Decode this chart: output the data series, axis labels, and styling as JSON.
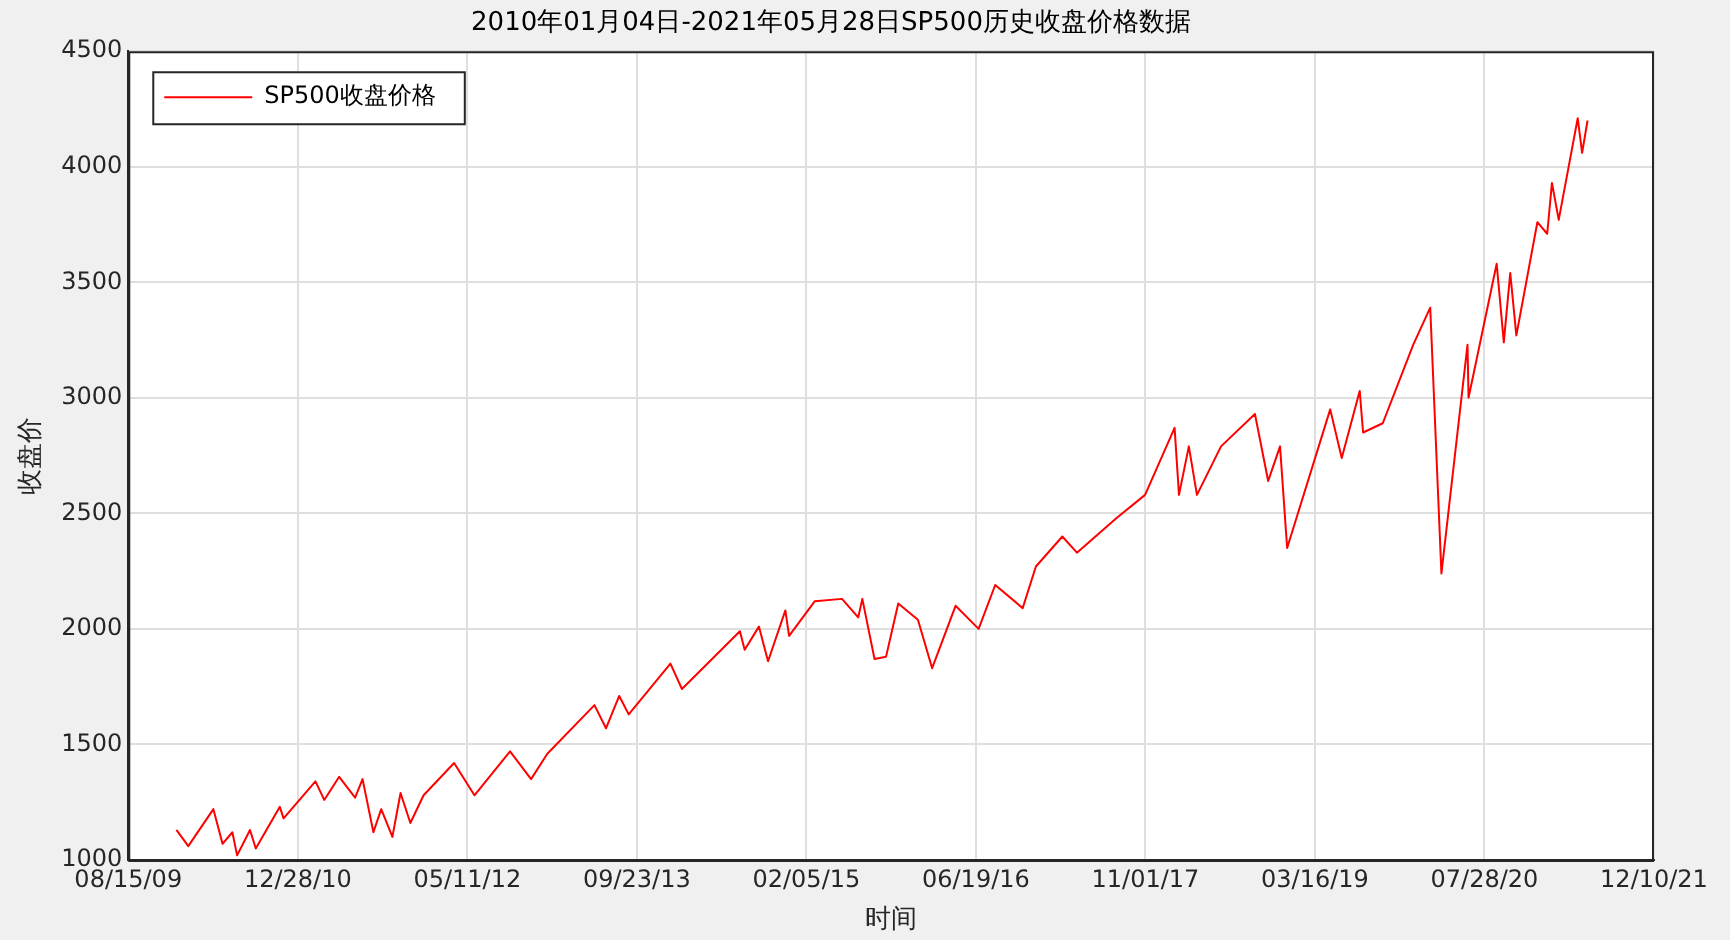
{
  "chart_data": {
    "type": "line",
    "title": "2010年01月04日-2021年05月28日SP500历史收盘价格数据",
    "xlabel": "时间",
    "ylabel": "收盘价",
    "x": [
      "2010-01-04",
      "2010-02-08",
      "2010-04-23",
      "2010-05-20",
      "2010-06-18",
      "2010-07-02",
      "2010-08-09",
      "2010-08-26",
      "2010-11-05",
      "2010-11-16",
      "2011-02-18",
      "2011-03-16",
      "2011-04-29",
      "2011-06-15",
      "2011-07-07",
      "2011-08-08",
      "2011-08-31",
      "2011-10-03",
      "2011-10-27",
      "2011-11-25",
      "2012-01-03",
      "2012-04-02",
      "2012-06-01",
      "2012-09-14",
      "2012-11-15",
      "2013-01-02",
      "2013-05-21",
      "2013-06-24",
      "2013-08-02",
      "2013-08-30",
      "2013-12-31",
      "2014-02-03",
      "2014-07-24",
      "2014-08-07",
      "2014-09-18",
      "2014-10-15",
      "2014-12-05",
      "2014-12-16",
      "2015-03-02",
      "2015-05-21",
      "2015-07-08",
      "2015-07-20",
      "2015-08-25",
      "2015-09-28",
      "2015-11-03",
      "2015-12-31",
      "2016-02-11",
      "2016-04-20",
      "2016-06-27",
      "2016-08-15",
      "2016-11-04",
      "2016-12-13",
      "2017-03-01",
      "2017-04-13",
      "2017-08-08",
      "2017-10-31",
      "2018-01-26",
      "2018-02-08",
      "2018-03-09",
      "2018-04-02",
      "2018-06-12",
      "2018-09-20",
      "2018-10-29",
      "2018-12-03",
      "2018-12-24",
      "2019-04-30",
      "2019-06-03",
      "2019-07-26",
      "2019-08-05",
      "2019-10-02",
      "2019-12-31",
      "2020-02-19",
      "2020-03-23",
      "2020-06-08",
      "2020-06-11",
      "2020-09-02",
      "2020-09-23",
      "2020-10-12",
      "2020-10-30",
      "2020-12-31",
      "2021-01-29",
      "2021-02-12",
      "2021-03-04",
      "2021-04-29",
      "2021-05-12",
      "2021-05-28"
    ],
    "series": [
      {
        "name": "SP500收盘价格",
        "color": "#ff0000",
        "values": [
          1130,
          1060,
          1220,
          1070,
          1120,
          1020,
          1130,
          1050,
          1230,
          1180,
          1340,
          1260,
          1360,
          1270,
          1350,
          1120,
          1220,
          1100,
          1290,
          1160,
          1280,
          1420,
          1280,
          1470,
          1350,
          1460,
          1670,
          1570,
          1710,
          1630,
          1850,
          1740,
          1990,
          1910,
          2010,
          1860,
          2080,
          1970,
          2120,
          2130,
          2050,
          2130,
          1870,
          1880,
          2110,
          2040,
          1830,
          2100,
          2000,
          2190,
          2090,
          2270,
          2400,
          2330,
          2480,
          2580,
          2870,
          2580,
          2790,
          2580,
          2790,
          2930,
          2640,
          2790,
          2350,
          2950,
          2740,
          3030,
          2850,
          2890,
          3230,
          3390,
          2240,
          3230,
          3000,
          3580,
          3240,
          3540,
          3270,
          3760,
          3710,
          3930,
          3770,
          4210,
          4060,
          4200
        ]
      }
    ],
    "xlim": [
      "2009-08-15",
      "2021-12-10"
    ],
    "xticks": [
      {
        "value": "2009-08-15",
        "label": "08/15/09"
      },
      {
        "value": "2010-12-28",
        "label": "12/28/10"
      },
      {
        "value": "2012-05-11",
        "label": "05/11/12"
      },
      {
        "value": "2013-09-23",
        "label": "09/23/13"
      },
      {
        "value": "2015-02-05",
        "label": "02/05/15"
      },
      {
        "value": "2016-06-19",
        "label": "06/19/16"
      },
      {
        "value": "2017-11-01",
        "label": "11/01/17"
      },
      {
        "value": "2019-03-16",
        "label": "03/16/19"
      },
      {
        "value": "2020-07-28",
        "label": "07/28/20"
      },
      {
        "value": "2021-12-10",
        "label": "12/10/21"
      }
    ],
    "ylim": [
      1000,
      4500
    ],
    "yticks": [
      1000,
      1500,
      2000,
      2500,
      3000,
      3500,
      4000,
      4500
    ],
    "grid": true,
    "legend": "top left",
    "marker": "none",
    "line_style": "solid"
  }
}
